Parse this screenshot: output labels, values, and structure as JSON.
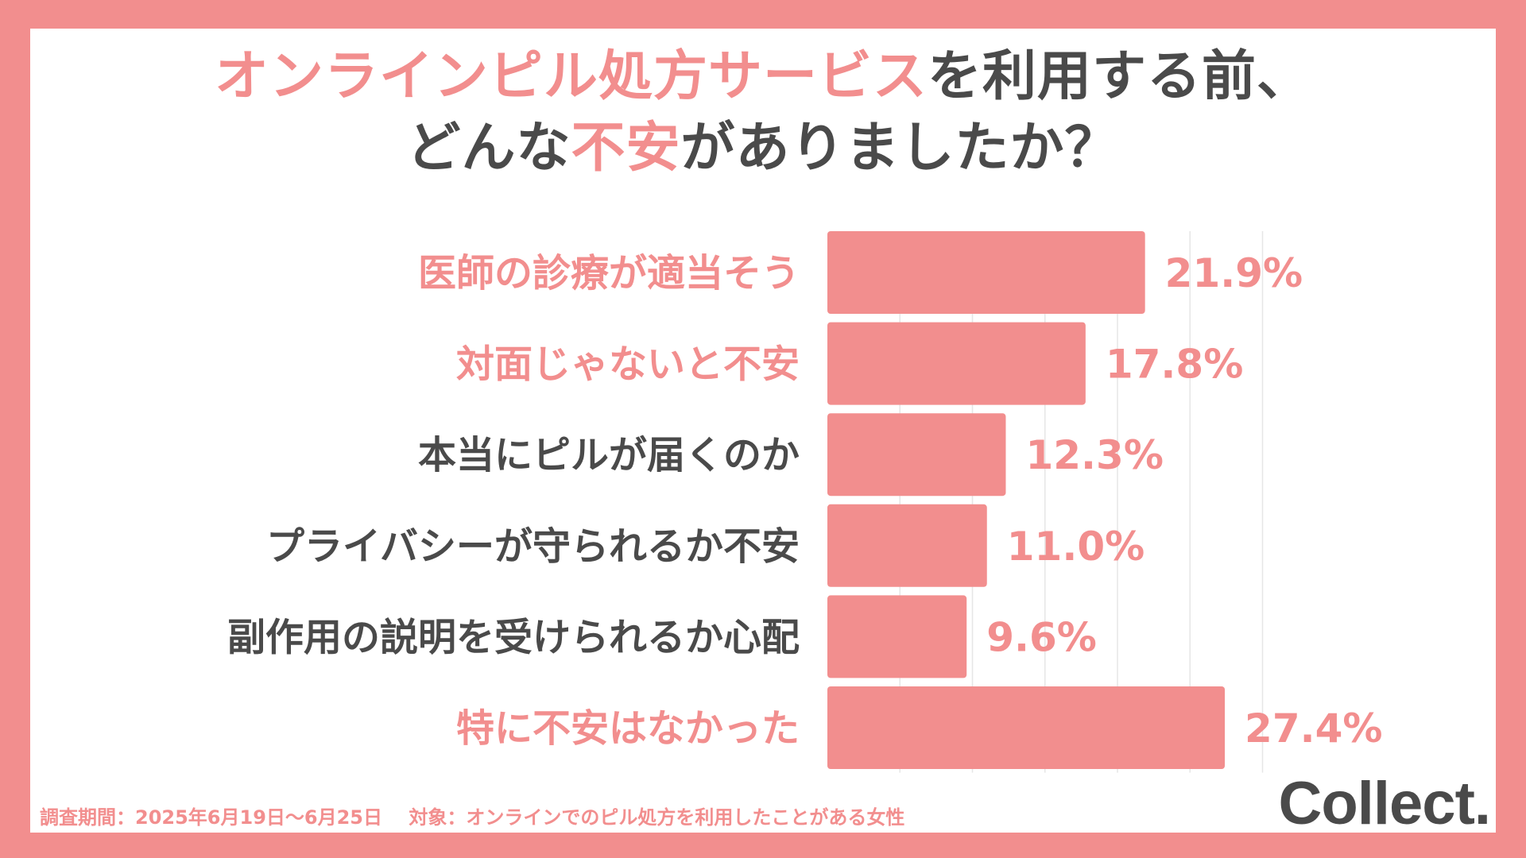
{
  "title": {
    "line1_highlight": "オンラインピル処方サービス",
    "line1_rest": "を利用する前、",
    "line2_before": "どんな",
    "line2_highlight": "不安",
    "line2_after": "がありましたか？"
  },
  "colors": {
    "accent": "#F28E8E",
    "text": "#4A4A4A",
    "grid": "#E6E6E6"
  },
  "chart_data": {
    "type": "bar",
    "orientation": "horizontal",
    "title": "オンラインピル処方サービスを利用する前、どんな不安がありましたか？",
    "categories": [
      "医師の診療が適当そう",
      "対面じゃないと不安",
      "本当にピルが届くのか",
      "プライバシーが守られるか不安",
      "副作用の説明を受けられるか心配",
      "特に不安はなかった"
    ],
    "values": [
      21.9,
      17.8,
      12.3,
      11.0,
      9.6,
      27.4
    ],
    "value_labels": [
      "21.9%",
      "17.8%",
      "12.3%",
      "11.0%",
      "9.6%",
      "27.4%"
    ],
    "highlighted": [
      true,
      true,
      false,
      false,
      false,
      true
    ],
    "xlim": [
      0,
      30
    ],
    "grid": true,
    "unit": "%"
  },
  "footer": {
    "survey_period": "調査期間：2025年6月19日〜6月25日",
    "target": "対象：オンラインでのピル処方を利用したことがある女性"
  },
  "brand": "Collect."
}
